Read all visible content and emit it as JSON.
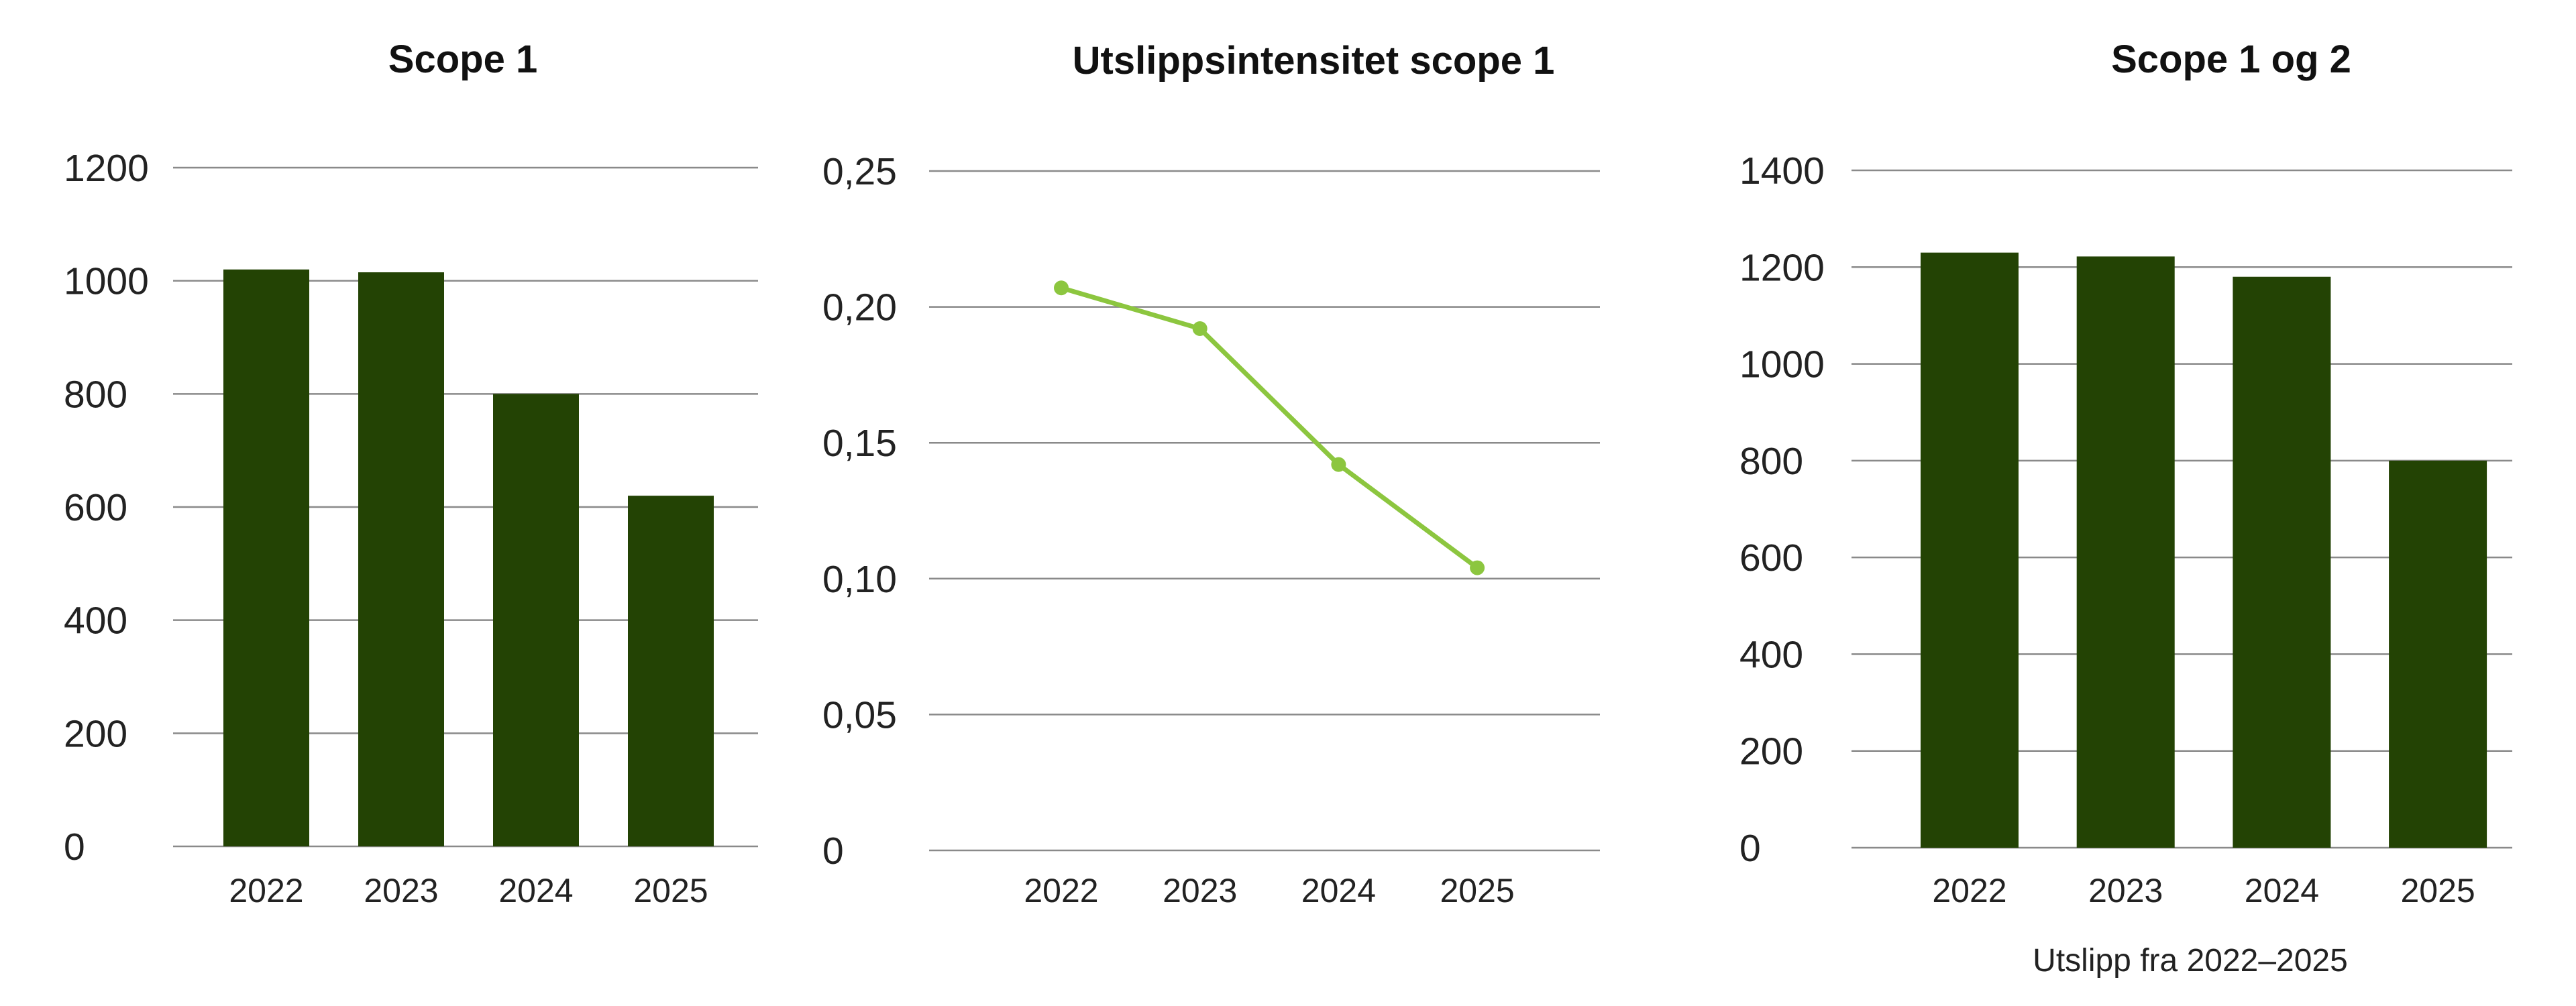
{
  "colors": {
    "bar": "#234304",
    "line": "#8cc63f",
    "grid": "#8a8a8a",
    "text": "#222222"
  },
  "caption": "Utslipp fra 2022–2025",
  "chart_data": [
    {
      "type": "bar",
      "title": "Scope 1",
      "categories": [
        "2022",
        "2023",
        "2024",
        "2025"
      ],
      "values": [
        1020,
        1015,
        800,
        620
      ],
      "ylim": [
        0,
        1200
      ],
      "yticks": [
        0,
        200,
        400,
        600,
        800,
        1000,
        1200
      ],
      "ytick_labels": [
        "0",
        "200",
        "400",
        "600",
        "800",
        "1000",
        "1200"
      ],
      "grid": true
    },
    {
      "type": "line",
      "title": "Utslippsintensitet scope 1",
      "categories": [
        "2022",
        "2023",
        "2024",
        "2025"
      ],
      "values": [
        0.207,
        0.192,
        0.142,
        0.104
      ],
      "ylim": [
        0,
        0.25
      ],
      "yticks": [
        0,
        0.05,
        0.1,
        0.15,
        0.2,
        0.25
      ],
      "ytick_labels": [
        "0",
        "0,05",
        "0,10",
        "0,15",
        "0,20",
        "0,25"
      ],
      "grid": true,
      "markers": true
    },
    {
      "type": "bar",
      "title": "Scope 1 og 2",
      "categories": [
        "2022",
        "2023",
        "2024",
        "2025"
      ],
      "values": [
        1230,
        1222,
        1180,
        800
      ],
      "ylim": [
        0,
        1400
      ],
      "yticks": [
        0,
        200,
        400,
        600,
        800,
        1000,
        1200,
        1400
      ],
      "ytick_labels": [
        "0",
        "200",
        "400",
        "600",
        "800",
        "1000",
        "1200",
        "1400"
      ],
      "grid": true
    }
  ]
}
